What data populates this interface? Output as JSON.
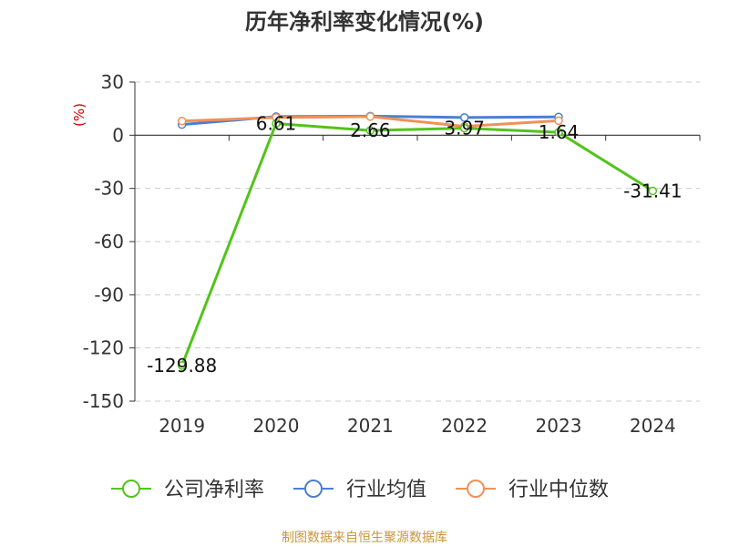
{
  "chart_data": {
    "type": "line",
    "title": "历年净利率变化情况(%)",
    "ylabel": "(%)",
    "xlabel": "",
    "categories": [
      "2019",
      "2020",
      "2021",
      "2022",
      "2023",
      "2024"
    ],
    "yticks": [
      "30",
      "0",
      "-30",
      "-60",
      "-90",
      "-120",
      "-150"
    ],
    "ylim": [
      -150,
      30
    ],
    "grid": true,
    "legend_position": "bottom",
    "series": [
      {
        "name": "公司净利率",
        "color": "#52c41a",
        "values": [
          -129.88,
          6.61,
          2.66,
          3.97,
          1.64,
          -31.41
        ],
        "labels": [
          "-129.88",
          "6.61",
          "2.66",
          "3.97",
          "1.64",
          "-31.41"
        ]
      },
      {
        "name": "行业均值",
        "color": "#4a7fd4",
        "values": [
          6.0,
          10.5,
          10.8,
          10.0,
          10.3,
          null
        ]
      },
      {
        "name": "行业中位数",
        "color": "#f0915a",
        "values": [
          8.0,
          10.0,
          10.5,
          5.0,
          8.2,
          null
        ]
      }
    ]
  },
  "source": "制图数据来自恒生聚源数据库"
}
